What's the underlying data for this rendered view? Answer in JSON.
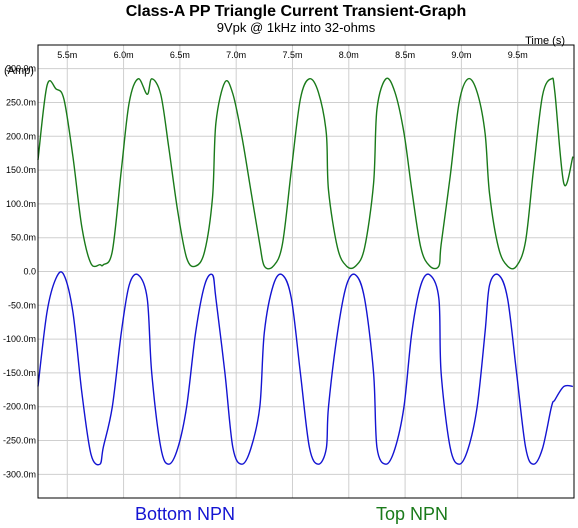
{
  "chart_data": {
    "type": "line",
    "title": "Class-A PP Triangle Current Transient-Graph",
    "subtitle": "9Vpk @ 1kHz into 32-ohms",
    "xlabel": "Time  (s)",
    "ylabel": "(Amp)",
    "x_unit": "ms",
    "xlim": [
      5.24,
      10.0
    ],
    "ylim": [
      -0.335,
      0.335
    ],
    "x_ticks": [
      "5.5m",
      "6.0m",
      "6.5m",
      "7.0m",
      "7.5m",
      "8.0m",
      "8.5m",
      "9.0m",
      "9.5m"
    ],
    "x_tick_values": [
      5.5,
      6.0,
      6.5,
      7.0,
      7.5,
      8.0,
      8.5,
      9.0,
      9.5
    ],
    "y_ticks": [
      "300.0m",
      "250.0m",
      "200.0m",
      "150.0m",
      "100.0m",
      "50.0m",
      "0.0",
      "-50.0m",
      "-100.0m",
      "-150.0m",
      "-200.0m",
      "-250.0m",
      "-300.0m"
    ],
    "y_tick_values": [
      0.3,
      0.25,
      0.2,
      0.15,
      0.1,
      0.05,
      0.0,
      -0.05,
      -0.1,
      -0.15,
      -0.2,
      -0.25,
      -0.3
    ],
    "grid": true,
    "series": [
      {
        "name": "Top NPN",
        "color": "#1a7a1a",
        "x": [
          5.24,
          5.32,
          5.4,
          5.47,
          5.55,
          5.63,
          5.71,
          5.79,
          5.82,
          5.9,
          5.98,
          6.05,
          6.13,
          6.21,
          6.25,
          6.33,
          6.4,
          6.48,
          6.56,
          6.64,
          6.72,
          6.79,
          6.82,
          6.9,
          6.97,
          7.05,
          7.13,
          7.21,
          7.25,
          7.33,
          7.41,
          7.49,
          7.57,
          7.65,
          7.73,
          7.8,
          7.82,
          7.9,
          7.98,
          8.06,
          8.14,
          8.22,
          8.25,
          8.33,
          8.41,
          8.49,
          8.56,
          8.64,
          8.72,
          8.8,
          8.82,
          8.9,
          8.98,
          9.06,
          9.14,
          9.21,
          9.25,
          9.33,
          9.41,
          9.49,
          9.57,
          9.64,
          9.72,
          9.8,
          9.83,
          9.91,
          9.99
        ],
        "values": [
          0.165,
          0.275,
          0.27,
          0.255,
          0.17,
          0.065,
          0.012,
          0.01,
          0.01,
          0.03,
          0.15,
          0.25,
          0.285,
          0.262,
          0.285,
          0.262,
          0.185,
          0.09,
          0.02,
          0.008,
          0.03,
          0.11,
          0.22,
          0.28,
          0.263,
          0.2,
          0.12,
          0.04,
          0.008,
          0.008,
          0.04,
          0.15,
          0.255,
          0.285,
          0.265,
          0.205,
          0.12,
          0.035,
          0.008,
          0.008,
          0.035,
          0.13,
          0.24,
          0.285,
          0.265,
          0.205,
          0.12,
          0.035,
          0.008,
          0.008,
          0.04,
          0.14,
          0.25,
          0.285,
          0.265,
          0.205,
          0.115,
          0.035,
          0.008,
          0.008,
          0.045,
          0.15,
          0.26,
          0.285,
          0.265,
          0.13,
          0.17
        ]
      },
      {
        "name": "Bottom NPN",
        "color": "#1414d2",
        "x": [
          5.24,
          5.32,
          5.4,
          5.47,
          5.55,
          5.63,
          5.71,
          5.79,
          5.82,
          5.9,
          5.98,
          6.05,
          6.13,
          6.21,
          6.25,
          6.33,
          6.4,
          6.48,
          6.56,
          6.64,
          6.72,
          6.79,
          6.82,
          6.9,
          6.97,
          7.05,
          7.13,
          7.21,
          7.25,
          7.33,
          7.41,
          7.49,
          7.57,
          7.65,
          7.73,
          7.8,
          7.82,
          7.9,
          7.98,
          8.06,
          8.14,
          8.22,
          8.25,
          8.33,
          8.41,
          8.49,
          8.56,
          8.64,
          8.72,
          8.8,
          8.82,
          8.9,
          8.98,
          9.06,
          9.14,
          9.21,
          9.25,
          9.33,
          9.41,
          9.49,
          9.57,
          9.64,
          9.72,
          9.8,
          9.83,
          9.91,
          9.99
        ],
        "values": [
          -0.17,
          -0.06,
          -0.01,
          -0.005,
          -0.06,
          -0.18,
          -0.27,
          -0.285,
          -0.26,
          -0.2,
          -0.09,
          -0.02,
          -0.005,
          -0.04,
          -0.15,
          -0.26,
          -0.285,
          -0.262,
          -0.2,
          -0.09,
          -0.02,
          -0.005,
          -0.04,
          -0.15,
          -0.26,
          -0.285,
          -0.262,
          -0.2,
          -0.09,
          -0.02,
          -0.005,
          -0.04,
          -0.15,
          -0.26,
          -0.285,
          -0.262,
          -0.2,
          -0.09,
          -0.02,
          -0.005,
          -0.04,
          -0.15,
          -0.26,
          -0.285,
          -0.262,
          -0.2,
          -0.09,
          -0.02,
          -0.005,
          -0.04,
          -0.15,
          -0.26,
          -0.285,
          -0.262,
          -0.2,
          -0.09,
          -0.02,
          -0.005,
          -0.04,
          -0.15,
          -0.26,
          -0.285,
          -0.262,
          -0.2,
          -0.19,
          -0.17,
          -0.17
        ]
      }
    ],
    "legend_placement": "bottom",
    "legend": [
      {
        "name": "Bottom NPN",
        "color": "#1414d2"
      },
      {
        "name": "Top NPN",
        "color": "#1a7a1a"
      }
    ]
  }
}
